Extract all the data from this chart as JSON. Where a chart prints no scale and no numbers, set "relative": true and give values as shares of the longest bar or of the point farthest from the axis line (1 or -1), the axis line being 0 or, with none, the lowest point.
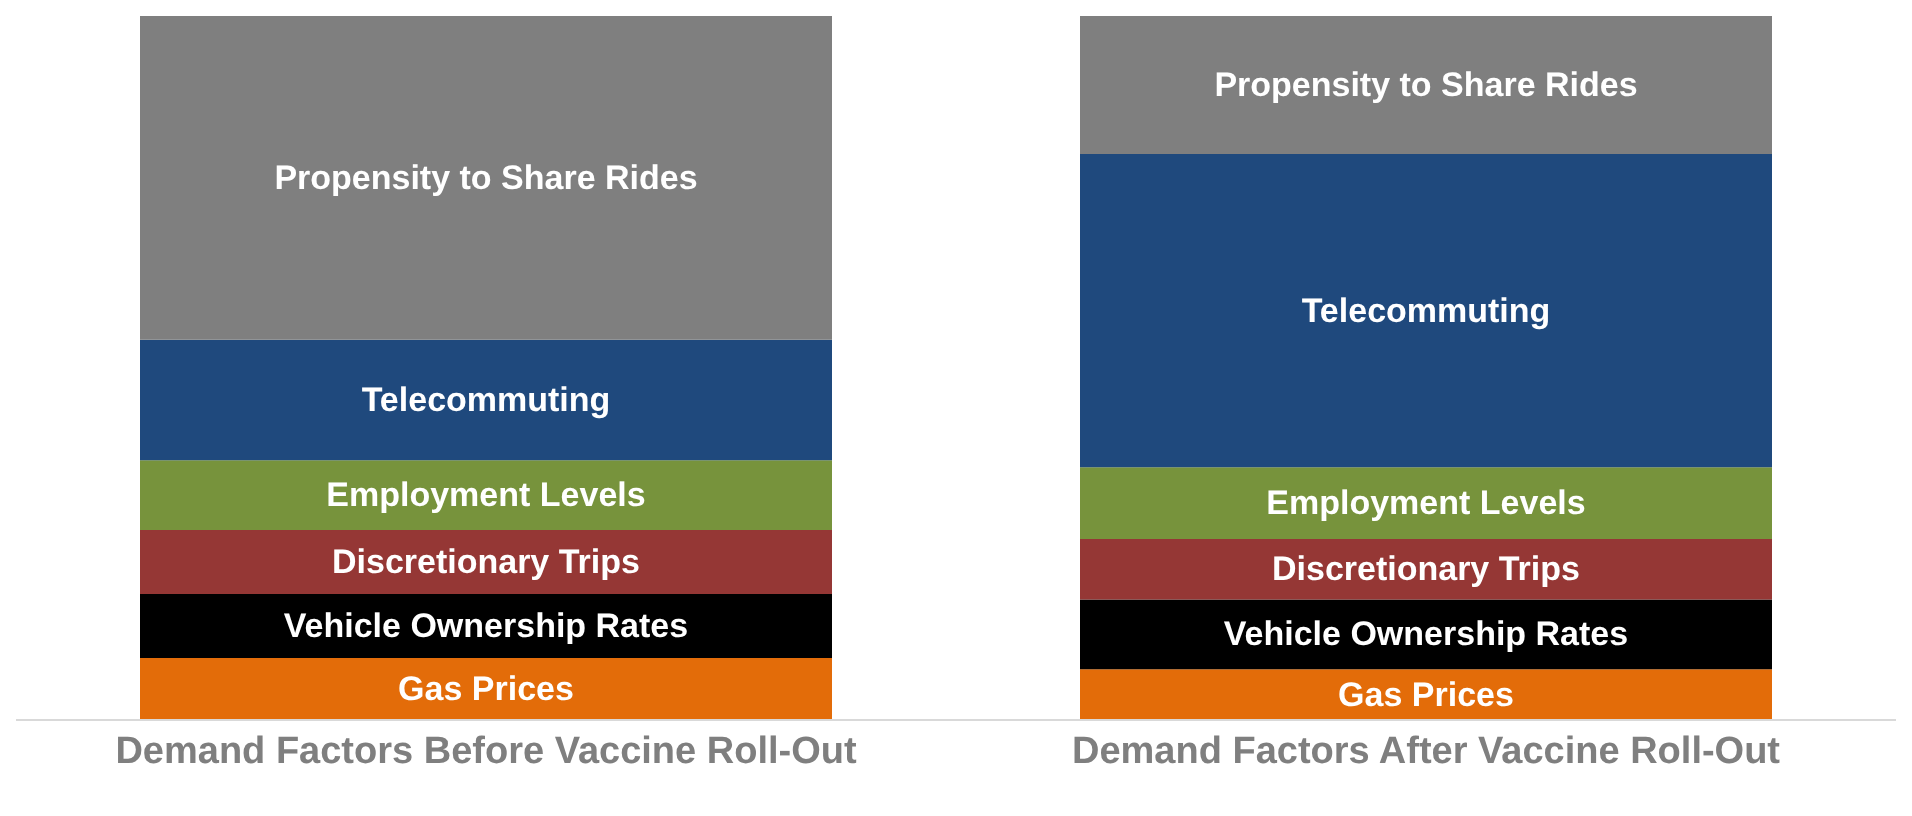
{
  "chart_data": {
    "type": "bar",
    "stacked": true,
    "relative": true,
    "categories": [
      "Demand Factors Before Vaccine Roll-Out",
      "Demand Factors After Vaccine Roll-Out"
    ],
    "series": [
      {
        "name": "Gas Prices",
        "color": "#e36c09",
        "values": [
          0.088,
          0.072
        ]
      },
      {
        "name": "Vehicle Ownership Rates",
        "color": "#000000",
        "values": [
          0.091,
          0.099
        ]
      },
      {
        "name": "Discretionary Trips",
        "color": "#953735",
        "values": [
          0.091,
          0.086
        ]
      },
      {
        "name": "Employment Levels",
        "color": "#77933c",
        "values": [
          0.099,
          0.102
        ]
      },
      {
        "name": "Telecommuting",
        "color": "#1f497d",
        "values": [
          0.171,
          0.445
        ]
      },
      {
        "name": "Propensity to Share Rides",
        "color": "#7f7f7f",
        "values": [
          0.46,
          0.196
        ]
      }
    ]
  }
}
